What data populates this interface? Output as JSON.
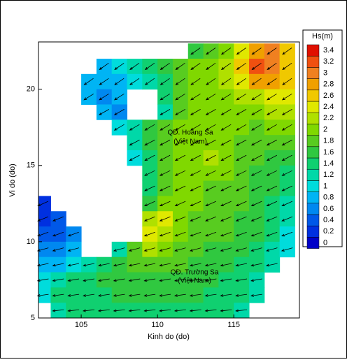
{
  "chart_data": {
    "type": "contour",
    "x_label": "Kinh do (do)",
    "y_label": "Vi do (do)",
    "colorbar_title": "Hs(m)",
    "xlim": [
      102.2,
      119.3
    ],
    "ylim": [
      5,
      23.1
    ],
    "xticks": [
      105,
      110,
      115
    ],
    "yticks": [
      5,
      10,
      15,
      20
    ],
    "x": [
      102.5,
      103.5,
      104.5,
      105.5,
      106.5,
      107.5,
      108.5,
      109.5,
      110.5,
      111.5,
      112.5,
      113.5,
      114.5,
      115.5,
      116.5,
      117.5,
      118.5
    ],
    "y": [
      22.5,
      21.5,
      20.5,
      19.5,
      18.5,
      17.5,
      16.5,
      15.5,
      14.5,
      13.5,
      12.5,
      11.5,
      10.5,
      9.5,
      8.5,
      7.5,
      6.5,
      5.5
    ],
    "z": [
      [
        null,
        null,
        null,
        null,
        null,
        null,
        null,
        null,
        null,
        null,
        1.6,
        1.8,
        2.0,
        2.4,
        2.8,
        3.0,
        2.6
      ],
      [
        null,
        null,
        null,
        null,
        0.8,
        1.0,
        1.2,
        1.4,
        1.6,
        1.8,
        2.0,
        2.0,
        2.2,
        2.6,
        3.2,
        3.0,
        2.6
      ],
      [
        null,
        null,
        null,
        0.8,
        0.8,
        0.8,
        1.0,
        1.2,
        1.4,
        1.8,
        2.0,
        2.0,
        2.2,
        2.4,
        2.8,
        2.8,
        2.6
      ],
      [
        null,
        null,
        null,
        0.8,
        0.6,
        0.8,
        null,
        null,
        1.4,
        1.8,
        2.0,
        2.0,
        2.0,
        2.2,
        2.2,
        2.4,
        2.4
      ],
      [
        null,
        null,
        null,
        null,
        0.8,
        0.6,
        null,
        null,
        1.2,
        1.8,
        2.0,
        2.0,
        2.0,
        2.0,
        2.0,
        2.2,
        2.2
      ],
      [
        null,
        null,
        null,
        null,
        null,
        1.0,
        1.2,
        1.6,
        1.8,
        2.0,
        2.0,
        2.0,
        2.0,
        2.0,
        1.8,
        2.0,
        2.0
      ],
      [
        null,
        null,
        null,
        null,
        null,
        null,
        1.2,
        1.6,
        1.8,
        2.0,
        2.0,
        2.0,
        2.0,
        1.8,
        1.8,
        1.8,
        1.8
      ],
      [
        null,
        null,
        null,
        null,
        null,
        null,
        1.0,
        1.4,
        1.8,
        2.0,
        2.0,
        2.2,
        2.0,
        1.8,
        1.8,
        1.6,
        1.6
      ],
      [
        null,
        null,
        null,
        null,
        null,
        null,
        null,
        1.4,
        1.8,
        2.0,
        2.0,
        2.0,
        2.0,
        1.8,
        1.6,
        1.6,
        1.4
      ],
      [
        null,
        null,
        null,
        null,
        null,
        null,
        null,
        1.4,
        1.8,
        2.0,
        2.0,
        1.8,
        1.8,
        1.8,
        1.6,
        1.6,
        1.4
      ],
      [
        0.2,
        null,
        null,
        null,
        null,
        null,
        null,
        1.6,
        2.0,
        2.0,
        2.0,
        1.8,
        1.8,
        1.8,
        1.6,
        1.4,
        1.2
      ],
      [
        0.2,
        0.4,
        null,
        null,
        null,
        null,
        null,
        2.2,
        2.4,
        2.0,
        1.8,
        1.8,
        1.8,
        1.6,
        1.6,
        1.4,
        1.2
      ],
      [
        0.4,
        0.4,
        0.6,
        null,
        null,
        null,
        null,
        2.4,
        2.2,
        2.0,
        1.8,
        1.8,
        1.8,
        1.6,
        1.6,
        1.4,
        1.0
      ],
      [
        0.6,
        0.6,
        0.8,
        null,
        null,
        1.2,
        1.8,
        2.2,
        2.0,
        1.8,
        1.8,
        1.6,
        1.6,
        1.6,
        1.4,
        1.2,
        1.0
      ],
      [
        0.8,
        0.8,
        1.0,
        1.2,
        1.4,
        1.6,
        1.8,
        1.8,
        1.8,
        1.8,
        1.6,
        1.6,
        1.6,
        1.4,
        1.4,
        1.2,
        null
      ],
      [
        1.0,
        1.2,
        1.4,
        1.4,
        1.6,
        1.6,
        1.6,
        1.6,
        1.6,
        1.6,
        1.6,
        1.6,
        1.4,
        1.4,
        1.2,
        null,
        null
      ],
      [
        1.0,
        1.4,
        1.4,
        1.4,
        1.4,
        1.6,
        1.6,
        1.6,
        1.6,
        1.6,
        1.6,
        1.4,
        1.4,
        1.4,
        1.2,
        null,
        null
      ],
      [
        null,
        1.2,
        1.4,
        1.4,
        1.4,
        1.4,
        1.4,
        1.4,
        1.4,
        1.4,
        1.4,
        1.4,
        1.4,
        1.2,
        null,
        null,
        null
      ]
    ],
    "directions": [
      215,
      215,
      215,
      212,
      210,
      210,
      208,
      208,
      206,
      205,
      204,
      202,
      200,
      196,
      192,
      190,
      188,
      186
    ],
    "levels": [
      0,
      0.2,
      0.4,
      0.6,
      0.8,
      1,
      1.2,
      1.4,
      1.6,
      1.8,
      2,
      2.2,
      2.4,
      2.6,
      2.8,
      3,
      3.2,
      3.4
    ],
    "level_colors": [
      "#0000c8",
      "#0030e0",
      "#0058e8",
      "#0088f0",
      "#00b4f4",
      "#00dcdc",
      "#00d8a8",
      "#10d070",
      "#30c840",
      "#58cc20",
      "#80d800",
      "#b0e000",
      "#e0e800",
      "#f0c800",
      "#f0a000",
      "#f08020",
      "#f05010",
      "#e01000"
    ],
    "annotations": [
      "QĐ. Hoàng Sa",
      "(Việt Nam)",
      "QĐ. Trường Sa",
      "(Việt Nam)"
    ]
  }
}
